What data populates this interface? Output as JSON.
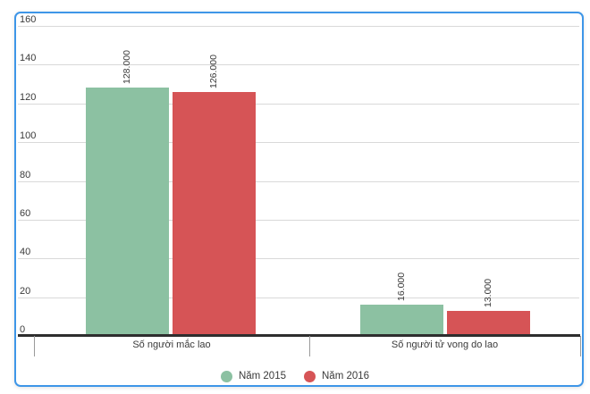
{
  "card": {
    "border_color": "#3e96e8",
    "background": "#ffffff"
  },
  "chart_data": {
    "type": "bar",
    "title": "",
    "xlabel": "",
    "ylabel": "",
    "categories": [
      "Số người mắc lao",
      "Số người tử vong do lao"
    ],
    "series": [
      {
        "name": "Năm 2015",
        "color": "#8cc1a2",
        "values": [
          128,
          16
        ],
        "value_labels": [
          "128.000",
          "16.000"
        ]
      },
      {
        "name": "Năm 2016",
        "color": "#d65456",
        "values": [
          126,
          13
        ],
        "value_labels": [
          "126.000",
          "13.000"
        ]
      }
    ],
    "ylim": [
      0,
      160
    ],
    "yticks": [
      0,
      20,
      40,
      60,
      80,
      100,
      120,
      140,
      160
    ],
    "grid": true,
    "value_label_rotation": -90,
    "legend_position": "bottom",
    "colors": {
      "grid": "#d9d9d9",
      "axis": "#2e2e2e",
      "tick": "#9a9a9a",
      "text": "#3a3a3a"
    }
  }
}
